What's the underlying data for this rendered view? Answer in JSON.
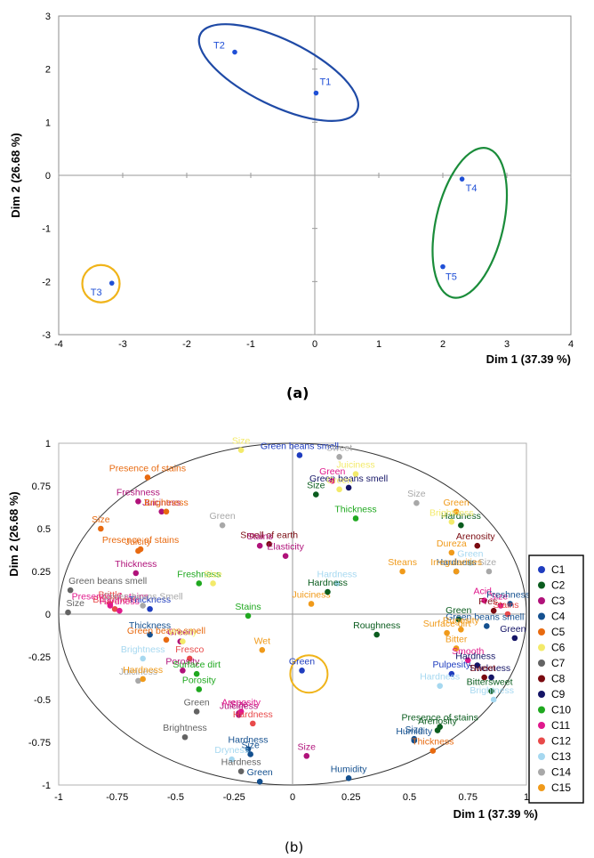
{
  "captions": {
    "a": "(a)",
    "b": "(b)"
  },
  "colors": {
    "C1": "#1f3dbf",
    "C2": "#0a5c1e",
    "C3": "#b0127a",
    "C4": "#14508f",
    "C5": "#e86a10",
    "C6": "#f3ea6a",
    "C7": "#636363",
    "C8": "#7a0a10",
    "C9": "#141466",
    "C10": "#1fa81f",
    "C11": "#e0188c",
    "C12": "#e84a4a",
    "C13": "#a6d8f0",
    "C14": "#a8a8a8",
    "C15": "#f09a1a",
    "chartA_point": "#1f4fd6",
    "ellipseBlue": "#1f4aa6",
    "ellipseGreen": "#1a8c3a",
    "circleOrange": "#f0b41a"
  },
  "chart_data": [
    {
      "type": "scatter",
      "panel": "(a)",
      "xlabel": "Dim 1 (37.39 %)",
      "ylabel": "Dim 2 (26.68 %)",
      "xlim": [
        -4,
        4
      ],
      "ylim": [
        -3,
        3
      ],
      "xticks": [
        "-4",
        "-3",
        "-2",
        "-1",
        "0",
        "1",
        "2",
        "3",
        "4"
      ],
      "yticks": [
        "-3",
        "-2",
        "-1",
        "0",
        "1",
        "2",
        "3"
      ],
      "points": [
        {
          "label": "T1",
          "x": 0.02,
          "y": 1.55
        },
        {
          "label": "T2",
          "x": -1.25,
          "y": 2.32
        },
        {
          "label": "T3",
          "x": -3.17,
          "y": -2.03
        },
        {
          "label": "T4",
          "x": 2.3,
          "y": -0.07
        },
        {
          "label": "T5",
          "x": 2.0,
          "y": -1.72
        }
      ],
      "groups": [
        {
          "members": [
            "T1",
            "T2"
          ],
          "color": "blue"
        },
        {
          "members": [
            "T4",
            "T5"
          ],
          "color": "green"
        },
        {
          "members": [
            "T3"
          ],
          "color": "orange"
        }
      ]
    },
    {
      "type": "scatter",
      "panel": "(b)",
      "xlabel": "Dim 1 (37.39 %)",
      "ylabel": "Dim 2 (26.68 %)",
      "xlim": [
        -1,
        1
      ],
      "ylim": [
        -1,
        1
      ],
      "xticks": [
        "-1",
        "-0.75",
        "-0.5",
        "-0.25",
        "0",
        "0.25",
        "0.5",
        "0.75",
        "1"
      ],
      "yticks": [
        "-1",
        "-0.75",
        "-0.5",
        "-0.25",
        "0",
        "0.25",
        "0.5",
        "0.75",
        "1"
      ],
      "legend": [
        "C1",
        "C2",
        "C3",
        "C4",
        "C5",
        "C6",
        "C7",
        "C8",
        "C9",
        "C10",
        "C11",
        "C12",
        "C13",
        "C14",
        "C15"
      ],
      "legend_position": "right",
      "points": [
        {
          "label": "Size",
          "c": "C6",
          "x": -0.22,
          "y": 0.96
        },
        {
          "label": "Green beans smell",
          "c": "C1",
          "x": 0.03,
          "y": 0.93
        },
        {
          "label": "Sweet",
          "c": "C14",
          "x": 0.2,
          "y": 0.92
        },
        {
          "label": "Juiciness",
          "c": "C6",
          "x": 0.27,
          "y": 0.82
        },
        {
          "label": "Green",
          "c": "C11",
          "x": 0.17,
          "y": 0.78
        },
        {
          "label": "Green beans smell",
          "c": "C9",
          "x": 0.24,
          "y": 0.74
        },
        {
          "label": "Size",
          "c": "C2",
          "x": 0.1,
          "y": 0.7
        },
        {
          "label": "Green",
          "c": "C6",
          "x": 0.2,
          "y": 0.73
        },
        {
          "label": "Thickness",
          "c": "C10",
          "x": 0.27,
          "y": 0.56
        },
        {
          "label": "Presence of stains",
          "c": "C5",
          "x": -0.62,
          "y": 0.8
        },
        {
          "label": "Freshness",
          "c": "C3",
          "x": -0.66,
          "y": 0.66
        },
        {
          "label": "Juiciness",
          "c": "C3",
          "x": -0.56,
          "y": 0.6
        },
        {
          "label": "Brightness",
          "c": "C5",
          "x": -0.54,
          "y": 0.6
        },
        {
          "label": "Size",
          "c": "C5",
          "x": -0.82,
          "y": 0.5
        },
        {
          "label": "Presence of stains",
          "c": "C5",
          "x": -0.65,
          "y": 0.38
        },
        {
          "label": "Juicity",
          "c": "C5",
          "x": -0.66,
          "y": 0.37
        },
        {
          "label": "Thickness",
          "c": "C3",
          "x": -0.67,
          "y": 0.24
        },
        {
          "label": "Green",
          "c": "C14",
          "x": -0.3,
          "y": 0.52
        },
        {
          "label": "Smell of earth",
          "c": "C8",
          "x": -0.1,
          "y": 0.41
        },
        {
          "label": "Stains",
          "c": "C3",
          "x": -0.14,
          "y": 0.4
        },
        {
          "label": "Elasticity",
          "c": "C3",
          "x": -0.03,
          "y": 0.34
        },
        {
          "label": "Freshness",
          "c": "C10",
          "x": -0.4,
          "y": 0.18
        },
        {
          "label": "Size",
          "c": "C6",
          "x": -0.34,
          "y": 0.18
        },
        {
          "label": "Green beans smell",
          "c": "C7",
          "x": -0.95,
          "y": 0.14
        },
        {
          "label": "Brittle",
          "c": "C12",
          "x": -0.78,
          "y": 0.06
        },
        {
          "label": "Brightness",
          "c": "C12",
          "x": -0.76,
          "y": 0.03
        },
        {
          "label": "Presence of stains",
          "c": "C11",
          "x": -0.78,
          "y": 0.05
        },
        {
          "label": "Hardness",
          "c": "C11",
          "x": -0.74,
          "y": 0.02
        },
        {
          "label": "Size",
          "c": "C7",
          "x": -0.96,
          "y": 0.01
        },
        {
          "label": "Thickness",
          "c": "C1",
          "x": -0.61,
          "y": 0.03
        },
        {
          "label": "Green beans Smell",
          "c": "C14",
          "x": -0.64,
          "y": 0.05
        },
        {
          "label": "Stains",
          "c": "C10",
          "x": -0.19,
          "y": -0.01
        },
        {
          "label": "Juiciness",
          "c": "C15",
          "x": 0.08,
          "y": 0.06
        },
        {
          "label": "Hardness",
          "c": "C13",
          "x": 0.19,
          "y": 0.18
        },
        {
          "label": "Hardness",
          "c": "C2",
          "x": 0.15,
          "y": 0.13
        },
        {
          "label": "Thickness",
          "c": "C4",
          "x": -0.61,
          "y": -0.12
        },
        {
          "label": "Green beans smell",
          "c": "C5",
          "x": -0.54,
          "y": -0.15
        },
        {
          "label": "Green",
          "c": "C3",
          "x": -0.48,
          "y": -0.16
        },
        {
          "label": "Woody",
          "c": "C6",
          "x": -0.47,
          "y": -0.16
        },
        {
          "label": "Brightness",
          "c": "C13",
          "x": -0.64,
          "y": -0.26
        },
        {
          "label": "Fresco",
          "c": "C12",
          "x": -0.44,
          "y": -0.26
        },
        {
          "label": "Porosity",
          "c": "C3",
          "x": -0.47,
          "y": -0.33
        },
        {
          "label": "Surface dirt",
          "c": "C10",
          "x": -0.41,
          "y": -0.35
        },
        {
          "label": "Wet",
          "c": "C15",
          "x": -0.13,
          "y": -0.21
        },
        {
          "label": "Juiciness",
          "c": "C14",
          "x": -0.66,
          "y": -0.39
        },
        {
          "label": "Hardness",
          "c": "C15",
          "x": -0.64,
          "y": -0.38
        },
        {
          "label": "Porosity",
          "c": "C10",
          "x": -0.4,
          "y": -0.44
        },
        {
          "label": "Green",
          "c": "C7",
          "x": -0.41,
          "y": -0.57
        },
        {
          "label": "Brightness",
          "c": "C7",
          "x": -0.46,
          "y": -0.72
        },
        {
          "label": "Size",
          "c": "C3",
          "x": -0.23,
          "y": -0.58
        },
        {
          "label": "Juiciness",
          "c": "C3",
          "x": -0.23,
          "y": -0.59
        },
        {
          "label": "Arenosity",
          "c": "C11",
          "x": -0.22,
          "y": -0.57
        },
        {
          "label": "Hardness",
          "c": "C12",
          "x": -0.17,
          "y": -0.64
        },
        {
          "label": "Hardness",
          "c": "C4",
          "x": -0.19,
          "y": -0.79
        },
        {
          "label": "Dryness",
          "c": "C13",
          "x": -0.26,
          "y": -0.85
        },
        {
          "label": "Size",
          "c": "C4",
          "x": -0.18,
          "y": -0.82
        },
        {
          "label": "Hardness",
          "c": "C7",
          "x": -0.22,
          "y": -0.92
        },
        {
          "label": "Green",
          "c": "C4",
          "x": -0.14,
          "y": -0.98
        },
        {
          "label": "Size",
          "c": "C3",
          "x": 0.06,
          "y": -0.83
        },
        {
          "label": "Green",
          "c": "C1",
          "x": 0.04,
          "y": -0.33
        },
        {
          "label": "Humidity",
          "c": "C4",
          "x": 0.24,
          "y": -0.96
        },
        {
          "label": "Roughness",
          "c": "C2",
          "x": 0.36,
          "y": -0.12
        },
        {
          "label": "Green",
          "c": "C15",
          "x": 0.7,
          "y": 0.6
        },
        {
          "label": "Hardness",
          "c": "C2",
          "x": 0.72,
          "y": 0.52
        },
        {
          "label": "Size",
          "c": "C14",
          "x": 0.53,
          "y": 0.65
        },
        {
          "label": "Brightness",
          "c": "C6",
          "x": 0.68,
          "y": 0.54
        },
        {
          "label": "Arenosity",
          "c": "C8",
          "x": 0.79,
          "y": 0.4
        },
        {
          "label": "Dureza",
          "c": "C15",
          "x": 0.68,
          "y": 0.36
        },
        {
          "label": "Green",
          "c": "C13",
          "x": 0.76,
          "y": 0.3
        },
        {
          "label": "Hardness",
          "c": "C4",
          "x": 0.7,
          "y": 0.25
        },
        {
          "label": "Size",
          "c": "C14",
          "x": 0.84,
          "y": 0.25
        },
        {
          "label": "Steans",
          "c": "C15",
          "x": 0.47,
          "y": 0.25
        },
        {
          "label": "Irregularities",
          "c": "C15",
          "x": 0.7,
          "y": 0.25
        },
        {
          "label": "Acid",
          "c": "C11",
          "x": 0.82,
          "y": 0.08
        },
        {
          "label": "Size",
          "c": "C11",
          "x": 0.89,
          "y": 0.05
        },
        {
          "label": "Freshness",
          "c": "C4",
          "x": 0.93,
          "y": 0.06
        },
        {
          "label": "Fres...",
          "c": "C8",
          "x": 0.86,
          "y": 0.02
        },
        {
          "label": "Stains",
          "c": "C12",
          "x": 0.92,
          "y": 0.0
        },
        {
          "label": "Green",
          "c": "C2",
          "x": 0.71,
          "y": -0.03
        },
        {
          "label": "Green beans smell",
          "c": "C4",
          "x": 0.83,
          "y": -0.07
        },
        {
          "label": "Rugosity",
          "c": "C15",
          "x": 0.72,
          "y": -0.09
        },
        {
          "label": "Surface dirt",
          "c": "C15",
          "x": 0.66,
          "y": -0.11
        },
        {
          "label": "Green",
          "c": "C9",
          "x": 0.95,
          "y": -0.14
        },
        {
          "label": "Bitter",
          "c": "C15",
          "x": 0.7,
          "y": -0.2
        },
        {
          "label": "Smooth",
          "c": "C11",
          "x": 0.75,
          "y": -0.27
        },
        {
          "label": "Hardness",
          "c": "C9",
          "x": 0.79,
          "y": -0.3
        },
        {
          "label": "Pulpesity",
          "c": "C1",
          "x": 0.68,
          "y": -0.35
        },
        {
          "label": "Thickness",
          "c": "C9",
          "x": 0.85,
          "y": -0.37
        },
        {
          "label": "Sweet",
          "c": "C8",
          "x": 0.82,
          "y": -0.37
        },
        {
          "label": "Hardness",
          "c": "C13",
          "x": 0.63,
          "y": -0.42
        },
        {
          "label": "Bittersweet",
          "c": "C2",
          "x": 0.85,
          "y": -0.45
        },
        {
          "label": "Brightness",
          "c": "C13",
          "x": 0.86,
          "y": -0.5
        },
        {
          "label": "Presence of stains",
          "c": "C2",
          "x": 0.63,
          "y": -0.66
        },
        {
          "label": "Arenosity",
          "c": "C2",
          "x": 0.62,
          "y": -0.68
        },
        {
          "label": "Size",
          "c": "C4",
          "x": 0.52,
          "y": -0.73
        },
        {
          "label": "Humidity",
          "c": "C4",
          "x": 0.52,
          "y": -0.74
        },
        {
          "label": "Thickness",
          "c": "C5",
          "x": 0.6,
          "y": -0.8
        }
      ]
    }
  ]
}
